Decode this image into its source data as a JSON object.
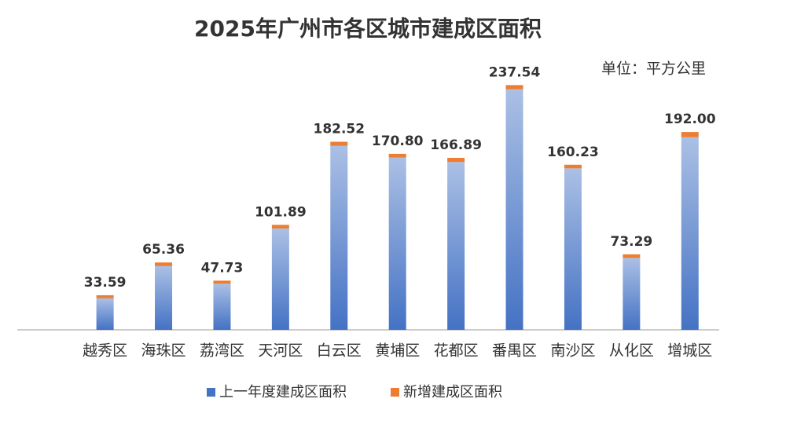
{
  "chart_data": {
    "type": "stacked_bar",
    "title": "2025年广州市各区城市建成区面积",
    "unit_note": "单位：平方公里",
    "categories": [
      null,
      "越秀区",
      "海珠区",
      "荔湾区",
      "天河区",
      "白云区",
      "黄埔区",
      "花都区",
      "番禺区",
      "南沙区",
      "从化区",
      "增城区"
    ],
    "series": [
      {
        "name": "上一年度建成区面积",
        "color": "#4472c4",
        "values": [
          null,
          30.59,
          61.86,
          44.73,
          98.39,
          178.52,
          167.3,
          162.89,
          233.54,
          156.73,
          69.79,
          187.0
        ]
      },
      {
        "name": "新增建成区面积",
        "color": "#ed7d31",
        "values": [
          null,
          3.0,
          3.5,
          3.0,
          3.5,
          4.0,
          3.5,
          4.0,
          4.0,
          3.5,
          3.5,
          5.0
        ]
      }
    ],
    "totals": [
      null,
      33.59,
      65.36,
      47.73,
      101.89,
      182.52,
      170.8,
      166.89,
      237.54,
      160.23,
      73.29,
      192.0
    ],
    "totals_labels": [
      null,
      "33.59",
      "65.36",
      "47.73",
      "101.89",
      "182.52",
      "170.80",
      "166.89",
      "237.54",
      "160.23",
      "73.29",
      "192.00"
    ],
    "ylim": [
      0,
      250
    ]
  }
}
